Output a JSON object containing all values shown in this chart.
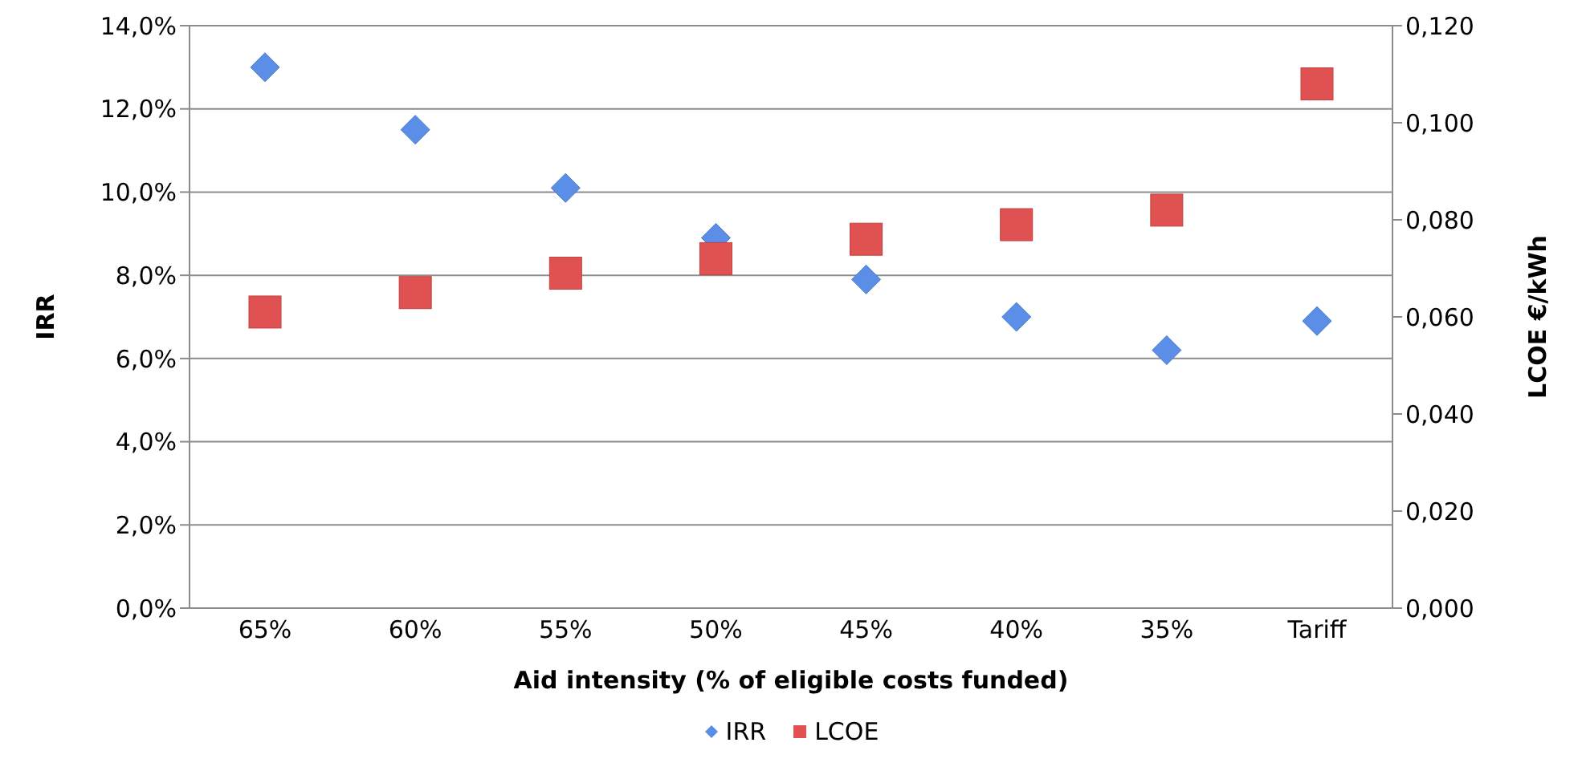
{
  "chart_data": {
    "type": "scatter",
    "xlabel": "Aid intensity (% of eligible costs funded)",
    "ylabel": "IRR",
    "y2label": "LCOE €/kWh",
    "categories": [
      "65%",
      "60%",
      "55%",
      "50%",
      "45%",
      "40%",
      "35%",
      "Tariff"
    ],
    "series": [
      {
        "name": "IRR",
        "color": "#5b8ee6",
        "marker": "diamond",
        "values": [
          13.0,
          11.5,
          10.1,
          8.9,
          7.9,
          7.0,
          6.2,
          6.9
        ]
      },
      {
        "name": "LCOE",
        "color": "#e05252",
        "marker": "square",
        "axis": "y2",
        "values": [
          0.061,
          0.065,
          0.069,
          0.072,
          0.076,
          0.079,
          0.082,
          0.108
        ]
      }
    ],
    "ylim": [
      0,
      14
    ],
    "yticks": [
      {
        "value": 0,
        "label": "0,0%"
      },
      {
        "value": 2,
        "label": "2,0%"
      },
      {
        "value": 4,
        "label": "4,0%"
      },
      {
        "value": 6,
        "label": "6,0%"
      },
      {
        "value": 8,
        "label": "8,0%"
      },
      {
        "value": 10,
        "label": "10,0%"
      },
      {
        "value": 12,
        "label": "12,0%"
      },
      {
        "value": 14,
        "label": "14,0%"
      }
    ],
    "y2lim": [
      0,
      0.12
    ],
    "y2ticks": [
      {
        "value": 0,
        "label": "0,000"
      },
      {
        "value": 0.02,
        "label": "0,020"
      },
      {
        "value": 0.04,
        "label": "0,040"
      },
      {
        "value": 0.06,
        "label": "0,060"
      },
      {
        "value": 0.08,
        "label": "0,080"
      },
      {
        "value": 0.1,
        "label": "0,100"
      },
      {
        "value": 0.12,
        "label": "0,120"
      }
    ],
    "grid": "y",
    "legend": "bottom"
  }
}
